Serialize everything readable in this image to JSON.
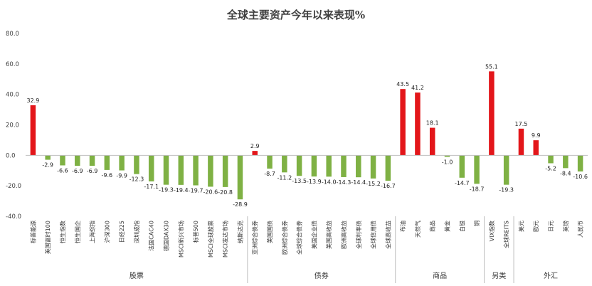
{
  "chart_data": {
    "type": "bar",
    "title": "全球主要资产今年以来表现%",
    "xlabel": "",
    "ylabel": "",
    "ylim": [
      -40,
      80
    ],
    "yticks": [
      "80.0",
      "60.0",
      "40.0",
      "20.0",
      "0.0",
      "-20.0",
      "-40.0"
    ],
    "grid": false,
    "legend": "none",
    "colors": {
      "positive": "#e3161a",
      "negative": "#7fb144"
    },
    "groups": [
      {
        "name": "股票",
        "start": 0,
        "end": 14
      },
      {
        "name": "债券",
        "start": 15,
        "end": 24
      },
      {
        "name": "商品",
        "start": 25,
        "end": 30
      },
      {
        "name": "另类",
        "start": 31,
        "end": 32
      },
      {
        "name": "外汇",
        "start": 33,
        "end": 37
      }
    ],
    "categories": [
      "标普能源",
      "英国富时100",
      "恒生指数",
      "恒生国企",
      "上海综指",
      "沪深300",
      "日经225",
      "深圳成指",
      "法国CAC40",
      "德国DAX30",
      "MSCI新兴市场",
      "标普500",
      "MSCI全球股票",
      "MSCI发达市场",
      "纳斯达克",
      "亚洲综合债券",
      "美国国债",
      "欧洲综合债券",
      "全球综合债券",
      "美国企业债",
      "美国高收益",
      "欧洲高收益",
      "全球利率债",
      "全球信用债",
      "全球高收益",
      "布油",
      "天然气",
      "商品",
      "黄金",
      "白银",
      "铜",
      "VIX指数",
      "全球REITS",
      "美元",
      "欧元",
      "日元",
      "英镑",
      "人民币"
    ],
    "values": [
      32.9,
      -2.9,
      -6.6,
      -6.9,
      -6.9,
      -9.6,
      -9.9,
      -12.3,
      -17.1,
      -19.3,
      -19.4,
      -19.7,
      -20.6,
      -20.8,
      -28.9,
      2.9,
      -8.7,
      -11.2,
      -13.5,
      -13.9,
      -14.0,
      -14.3,
      -14.4,
      -15.2,
      -16.7,
      43.5,
      41.2,
      18.1,
      -1.0,
      -14.7,
      -18.7,
      55.1,
      -19.3,
      17.5,
      9.9,
      -5.2,
      -8.4,
      -10.6
    ],
    "data_labels": [
      "32.9",
      "-2.9",
      "-6.6",
      "-6.9",
      "-6.9",
      "-9.6",
      "-9.9",
      "-12.3",
      "-17.1",
      "-19.3",
      "-19.4",
      "-19.7",
      "-20.6",
      "-20.8",
      "-28.9",
      "2.9",
      "-8.7",
      "-11.2",
      "-13.5",
      "-13.9",
      "-14.0",
      "-14.3",
      "-14.4",
      "-15.2",
      "-16.7",
      "43.5",
      "41.2",
      "18.1",
      "-1.0",
      "-14.7",
      "-18.7",
      "55.1",
      "-19.3",
      "17.5",
      "9.9",
      "-5.2",
      "-8.4",
      "-10.6"
    ]
  }
}
